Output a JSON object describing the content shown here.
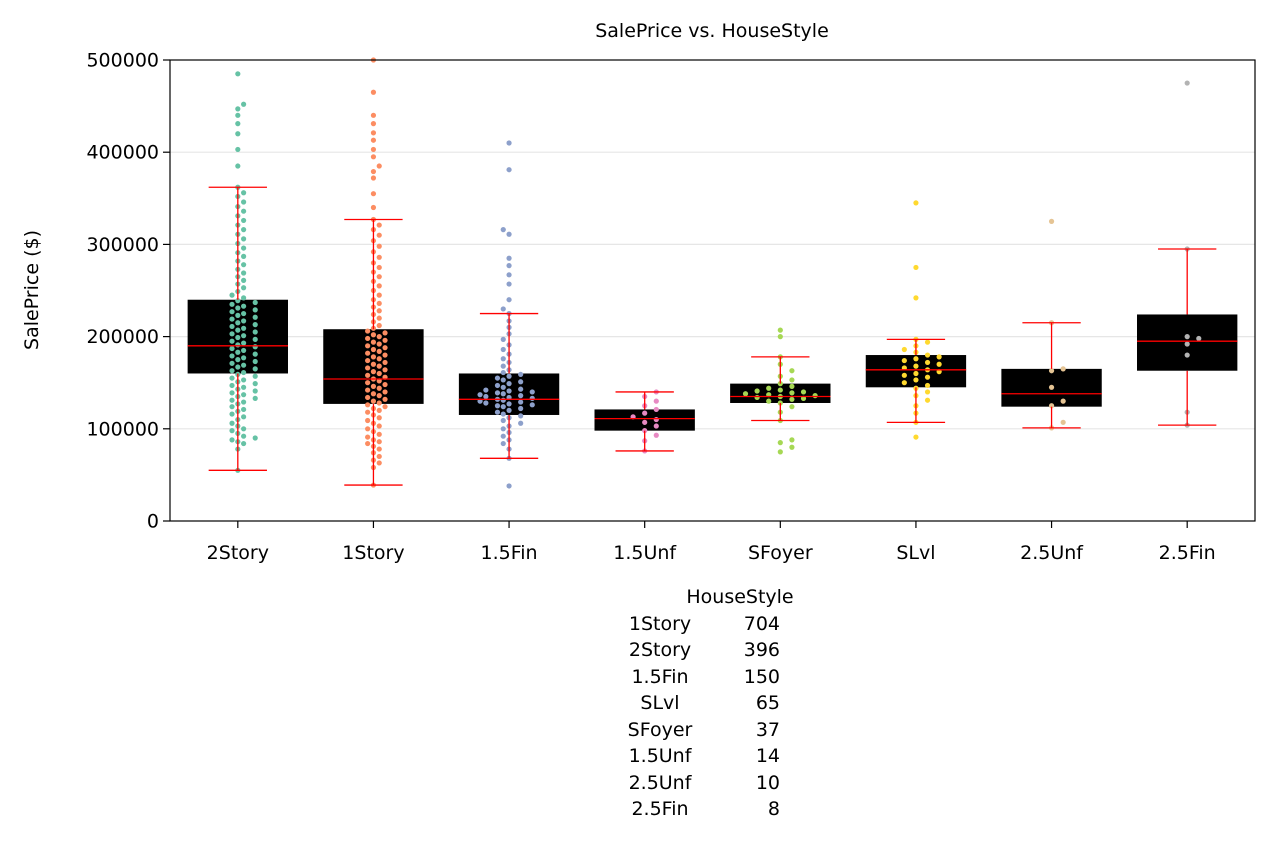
{
  "chart_data": {
    "type": "box",
    "title": "SalePrice vs. HouseStyle",
    "xlabel": "",
    "ylabel": "SalePrice ($)",
    "ylim": [
      0,
      500000
    ],
    "yticks": [
      "0",
      "100000",
      "200000",
      "300000",
      "400000",
      "500000"
    ],
    "categories": [
      "2Story",
      "1Story",
      "1.5Fin",
      "1.5Unf",
      "SFoyer",
      "SLvl",
      "2.5Unf",
      "2.5Fin"
    ],
    "colors": [
      "#66c2a5",
      "#fc8d62",
      "#8da0cb",
      "#e78ac3",
      "#a6d854",
      "#ffd92f",
      "#e5c494",
      "#b3b3b3"
    ],
    "box_color": "#000000",
    "whisker_color": "#ff0000",
    "grid": "horizontal",
    "boxes": [
      {
        "q1": 160000,
        "median": 190000,
        "q3": 240000,
        "whisker_low": 55000,
        "whisker_high": 362000,
        "outliers": [
          385000,
          403000,
          420000,
          431000,
          440000,
          447000,
          452000,
          485000
        ]
      },
      {
        "q1": 127000,
        "median": 154000,
        "q3": 208000,
        "whisker_low": 39000,
        "whisker_high": 327000,
        "outliers": [
          340000,
          355000,
          372000,
          379000,
          385000,
          395000,
          403000,
          413000,
          421000,
          431000,
          440000,
          465000,
          500000
        ]
      },
      {
        "q1": 115000,
        "median": 132000,
        "q3": 160000,
        "whisker_low": 68000,
        "whisker_high": 225000,
        "outliers": [
          38000,
          230000,
          240000,
          257000,
          267000,
          277000,
          285000,
          311000,
          316000,
          381000,
          410000
        ]
      },
      {
        "q1": 98000,
        "median": 111000,
        "q3": 121000,
        "whisker_low": 76000,
        "whisker_high": 140000,
        "outliers": []
      },
      {
        "q1": 128000,
        "median": 135000,
        "q3": 149000,
        "whisker_low": 109000,
        "whisker_high": 178000,
        "outliers": [
          75000,
          80000,
          85000,
          88000,
          200000,
          207000
        ]
      },
      {
        "q1": 145000,
        "median": 164000,
        "q3": 180000,
        "whisker_low": 107000,
        "whisker_high": 197000,
        "outliers": [
          91000,
          242000,
          275000,
          345000
        ]
      },
      {
        "q1": 124000,
        "median": 138000,
        "q3": 165000,
        "whisker_low": 101000,
        "whisker_high": 215000,
        "outliers": [
          325000
        ]
      },
      {
        "q1": 163000,
        "median": 195000,
        "q3": 224000,
        "whisker_low": 104000,
        "whisker_high": 295000,
        "outliers": [
          475000
        ]
      }
    ],
    "points": [
      [
        55000,
        78000,
        84000,
        86000,
        88000,
        90000,
        92000,
        95000,
        98000,
        100000,
        103000,
        106000,
        110000,
        113000,
        116000,
        119000,
        121000,
        124000,
        127000,
        129000,
        131000,
        133000,
        135000,
        137000,
        139000,
        141000,
        143000,
        145000,
        147000,
        149000,
        151000,
        153000,
        155000,
        157000,
        159000,
        161000,
        163000,
        165000,
        167000,
        169000,
        171000,
        173000,
        175000,
        177000,
        179000,
        181000,
        183000,
        185000,
        187000,
        189000,
        191000,
        193000,
        195000,
        197000,
        199000,
        201000,
        203000,
        205000,
        207000,
        209000,
        211000,
        213000,
        215000,
        217000,
        219000,
        221000,
        223000,
        225000,
        227000,
        229000,
        231000,
        233000,
        235000,
        237000,
        239000,
        242000,
        245000,
        249000,
        253000,
        257000,
        261000,
        265000,
        269000,
        273000,
        278000,
        282000,
        287000,
        291000,
        296000,
        301000,
        306000,
        311000,
        316000,
        321000,
        326000,
        331000,
        336000,
        341000,
        346000,
        352000,
        356000,
        362000,
        385000,
        403000,
        420000,
        431000,
        440000,
        447000,
        452000,
        485000
      ],
      [
        39000,
        58000,
        63000,
        66000,
        70000,
        74000,
        78000,
        81000,
        84000,
        86000,
        88000,
        91000,
        94000,
        97000,
        100000,
        103000,
        106000,
        109000,
        112000,
        115000,
        118000,
        120000,
        122000,
        124000,
        126000,
        128000,
        130000,
        132000,
        134000,
        136000,
        138000,
        140000,
        142000,
        144000,
        146000,
        148000,
        150000,
        152000,
        154000,
        156000,
        158000,
        160000,
        162000,
        164000,
        166000,
        168000,
        170000,
        172000,
        174000,
        176000,
        178000,
        180000,
        182000,
        184000,
        186000,
        188000,
        190000,
        192000,
        194000,
        196000,
        198000,
        200000,
        202000,
        204000,
        206000,
        209000,
        212000,
        216000,
        220000,
        224000,
        228000,
        232000,
        236000,
        240000,
        245000,
        250000,
        255000,
        260000,
        265000,
        270000,
        275000,
        280000,
        286000,
        292000,
        298000,
        304000,
        310000,
        316000,
        321000,
        327000,
        340000,
        355000,
        372000,
        379000,
        385000,
        395000,
        403000,
        413000,
        421000,
        431000,
        440000,
        465000,
        500000
      ],
      [
        38000,
        68000,
        78000,
        84000,
        88000,
        92000,
        96000,
        100000,
        103000,
        106000,
        109000,
        112000,
        114000,
        116000,
        118000,
        120000,
        122000,
        124000,
        125000,
        126000,
        127000,
        128000,
        129000,
        130000,
        131000,
        132000,
        133000,
        134000,
        135000,
        136000,
        137000,
        138000,
        139000,
        140000,
        141000,
        142000,
        143000,
        145000,
        147000,
        149000,
        151000,
        153000,
        155000,
        157000,
        159000,
        161000,
        164000,
        168000,
        172000,
        176000,
        181000,
        186000,
        191000,
        197000,
        203000,
        210000,
        217000,
        225000,
        230000,
        240000,
        257000,
        267000,
        277000,
        285000,
        311000,
        316000,
        381000,
        410000
      ],
      [
        76000,
        87000,
        93000,
        98000,
        103000,
        107000,
        110000,
        113000,
        117000,
        121000,
        125000,
        130000,
        135000,
        140000
      ],
      [
        75000,
        80000,
        85000,
        88000,
        109000,
        118000,
        124000,
        128000,
        130000,
        132000,
        133000,
        134000,
        135000,
        136000,
        137000,
        138000,
        139000,
        140000,
        141000,
        142000,
        144000,
        146000,
        149000,
        153000,
        157000,
        163000,
        170000,
        178000,
        200000,
        207000
      ],
      [
        91000,
        107000,
        117000,
        125000,
        131000,
        136000,
        140000,
        144000,
        147000,
        150000,
        153000,
        156000,
        158000,
        160000,
        162000,
        164000,
        166000,
        168000,
        170000,
        172000,
        174000,
        176000,
        178000,
        180000,
        183000,
        186000,
        190000,
        194000,
        197000,
        242000,
        275000,
        345000
      ],
      [
        101000,
        107000,
        125000,
        130000,
        145000,
        163000,
        165000,
        215000,
        325000
      ],
      [
        104000,
        118000,
        180000,
        192000,
        198000,
        200000,
        295000,
        475000
      ]
    ]
  },
  "count_table": {
    "header": "HouseStyle",
    "rows": [
      {
        "name": "1Story",
        "count": "704"
      },
      {
        "name": "2Story",
        "count": "396"
      },
      {
        "name": "1.5Fin",
        "count": "150"
      },
      {
        "name": "SLvl",
        "count": "65"
      },
      {
        "name": "SFoyer",
        "count": "37"
      },
      {
        "name": "1.5Unf",
        "count": "14"
      },
      {
        "name": "2.5Unf",
        "count": "10"
      },
      {
        "name": "2.5Fin",
        "count": "8"
      }
    ]
  }
}
